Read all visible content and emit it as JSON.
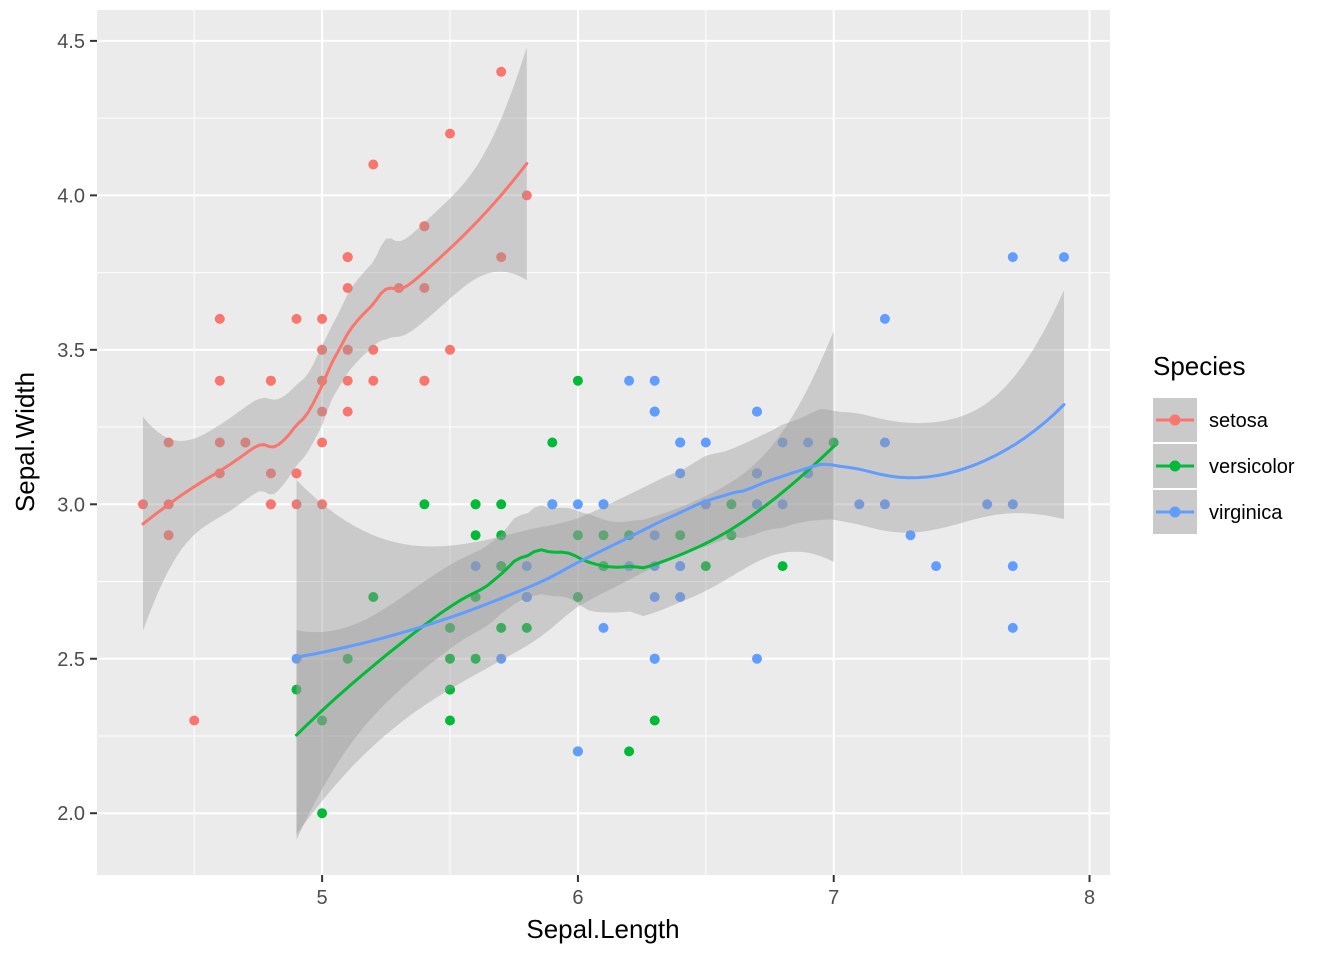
{
  "chart_data": {
    "type": "scatter",
    "title": "",
    "xlabel": "Sepal.Length",
    "ylabel": "Sepal.Width",
    "xlim": [
      4.12,
      8.08
    ],
    "ylim": [
      1.8,
      4.6
    ],
    "x_ticks": [
      5,
      6,
      7,
      8
    ],
    "x_tick_labels": [
      "5",
      "6",
      "7",
      "8"
    ],
    "x_minor_ticks": [
      4.5,
      5.5,
      6.5,
      7.5
    ],
    "y_ticks": [
      2.0,
      2.5,
      3.0,
      3.5,
      4.0,
      4.5
    ],
    "y_tick_labels": [
      "2.0",
      "2.5",
      "3.0",
      "3.5",
      "4.0",
      "4.5"
    ],
    "y_minor_ticks": [
      2.25,
      2.75,
      3.25,
      3.75,
      4.25
    ],
    "grid": true,
    "legend": {
      "title": "Species",
      "position": "right"
    },
    "smooth": {
      "method": "loess",
      "span": 0.75,
      "degree": 2,
      "level": 0.95,
      "ribbon_color": "#999999",
      "ribbon_alpha": 0.4
    },
    "style": {
      "panel_bg": "#EBEBEB",
      "grid_color": "#FFFFFF",
      "axis_text_color": "#4D4D4D",
      "tick_color": "#333333"
    },
    "series": [
      {
        "name": "setosa",
        "color": "#F8766D",
        "points": [
          [
            5.1,
            3.5
          ],
          [
            4.9,
            3.0
          ],
          [
            4.7,
            3.2
          ],
          [
            4.6,
            3.1
          ],
          [
            5.0,
            3.6
          ],
          [
            5.4,
            3.9
          ],
          [
            4.6,
            3.4
          ],
          [
            5.0,
            3.4
          ],
          [
            4.4,
            2.9
          ],
          [
            4.9,
            3.1
          ],
          [
            5.4,
            3.7
          ],
          [
            4.8,
            3.4
          ],
          [
            4.8,
            3.0
          ],
          [
            4.3,
            3.0
          ],
          [
            5.8,
            4.0
          ],
          [
            5.7,
            4.4
          ],
          [
            5.4,
            3.9
          ],
          [
            5.1,
            3.5
          ],
          [
            5.7,
            3.8
          ],
          [
            5.1,
            3.8
          ],
          [
            5.4,
            3.4
          ],
          [
            5.1,
            3.7
          ],
          [
            4.6,
            3.6
          ],
          [
            5.1,
            3.3
          ],
          [
            4.8,
            3.4
          ],
          [
            5.0,
            3.0
          ],
          [
            5.0,
            3.4
          ],
          [
            5.2,
            3.5
          ],
          [
            5.2,
            3.4
          ],
          [
            4.7,
            3.2
          ],
          [
            4.8,
            3.1
          ],
          [
            5.4,
            3.4
          ],
          [
            5.2,
            4.1
          ],
          [
            5.5,
            4.2
          ],
          [
            4.9,
            3.1
          ],
          [
            5.0,
            3.2
          ],
          [
            5.5,
            3.5
          ],
          [
            4.9,
            3.6
          ],
          [
            4.4,
            3.0
          ],
          [
            5.1,
            3.4
          ],
          [
            5.0,
            3.5
          ],
          [
            4.5,
            2.3
          ],
          [
            4.4,
            3.2
          ],
          [
            5.0,
            3.5
          ],
          [
            5.1,
            3.8
          ],
          [
            4.8,
            3.0
          ],
          [
            5.1,
            3.8
          ],
          [
            4.6,
            3.2
          ],
          [
            5.3,
            3.7
          ],
          [
            5.0,
            3.3
          ]
        ]
      },
      {
        "name": "versicolor",
        "color": "#00BA38",
        "points": [
          [
            7.0,
            3.2
          ],
          [
            6.4,
            3.2
          ],
          [
            6.9,
            3.1
          ],
          [
            5.5,
            2.3
          ],
          [
            6.5,
            2.8
          ],
          [
            5.7,
            2.8
          ],
          [
            6.3,
            3.3
          ],
          [
            4.9,
            2.4
          ],
          [
            6.6,
            2.9
          ],
          [
            5.2,
            2.7
          ],
          [
            5.0,
            2.0
          ],
          [
            5.9,
            3.0
          ],
          [
            6.0,
            2.2
          ],
          [
            6.1,
            2.9
          ],
          [
            5.6,
            2.9
          ],
          [
            6.7,
            3.1
          ],
          [
            5.6,
            3.0
          ],
          [
            5.8,
            2.7
          ],
          [
            6.2,
            2.2
          ],
          [
            5.6,
            2.5
          ],
          [
            5.9,
            3.2
          ],
          [
            6.1,
            2.8
          ],
          [
            6.3,
            2.5
          ],
          [
            6.1,
            2.8
          ],
          [
            6.4,
            2.9
          ],
          [
            6.6,
            3.0
          ],
          [
            6.8,
            2.8
          ],
          [
            6.7,
            3.0
          ],
          [
            6.0,
            2.9
          ],
          [
            5.7,
            2.6
          ],
          [
            5.5,
            2.4
          ],
          [
            5.5,
            2.4
          ],
          [
            5.8,
            2.7
          ],
          [
            6.0,
            2.7
          ],
          [
            5.4,
            3.0
          ],
          [
            6.0,
            3.4
          ],
          [
            6.7,
            3.1
          ],
          [
            6.3,
            2.3
          ],
          [
            5.6,
            3.0
          ],
          [
            5.5,
            2.5
          ],
          [
            5.5,
            2.6
          ],
          [
            6.1,
            3.0
          ],
          [
            5.8,
            2.6
          ],
          [
            5.0,
            2.3
          ],
          [
            5.6,
            2.7
          ],
          [
            5.7,
            3.0
          ],
          [
            5.7,
            2.9
          ],
          [
            6.2,
            2.9
          ],
          [
            5.1,
            2.5
          ],
          [
            5.7,
            2.8
          ]
        ]
      },
      {
        "name": "virginica",
        "color": "#619CFF",
        "points": [
          [
            6.3,
            3.3
          ],
          [
            5.8,
            2.7
          ],
          [
            7.1,
            3.0
          ],
          [
            6.3,
            2.9
          ],
          [
            6.5,
            3.0
          ],
          [
            7.6,
            3.0
          ],
          [
            4.9,
            2.5
          ],
          [
            7.3,
            2.9
          ],
          [
            6.7,
            2.5
          ],
          [
            7.2,
            3.6
          ],
          [
            6.5,
            3.2
          ],
          [
            6.4,
            2.7
          ],
          [
            6.8,
            3.0
          ],
          [
            5.7,
            2.5
          ],
          [
            5.8,
            2.8
          ],
          [
            6.4,
            3.2
          ],
          [
            6.5,
            3.0
          ],
          [
            7.7,
            3.8
          ],
          [
            7.7,
            2.6
          ],
          [
            6.0,
            2.2
          ],
          [
            6.9,
            3.2
          ],
          [
            5.6,
            2.8
          ],
          [
            7.7,
            2.8
          ],
          [
            6.3,
            2.7
          ],
          [
            6.7,
            3.3
          ],
          [
            7.2,
            3.2
          ],
          [
            6.2,
            2.8
          ],
          [
            6.1,
            3.0
          ],
          [
            6.4,
            2.8
          ],
          [
            7.2,
            3.0
          ],
          [
            7.4,
            2.8
          ],
          [
            7.9,
            3.8
          ],
          [
            6.4,
            2.8
          ],
          [
            6.3,
            2.8
          ],
          [
            6.1,
            2.6
          ],
          [
            7.7,
            3.0
          ],
          [
            6.3,
            3.4
          ],
          [
            6.4,
            3.1
          ],
          [
            6.0,
            3.0
          ],
          [
            6.9,
            3.1
          ],
          [
            6.7,
            3.1
          ],
          [
            6.9,
            3.1
          ],
          [
            5.8,
            2.7
          ],
          [
            6.8,
            3.2
          ],
          [
            6.7,
            3.3
          ],
          [
            6.7,
            3.0
          ],
          [
            6.3,
            2.5
          ],
          [
            6.5,
            3.0
          ],
          [
            6.2,
            3.4
          ],
          [
            5.9,
            3.0
          ]
        ]
      }
    ]
  }
}
